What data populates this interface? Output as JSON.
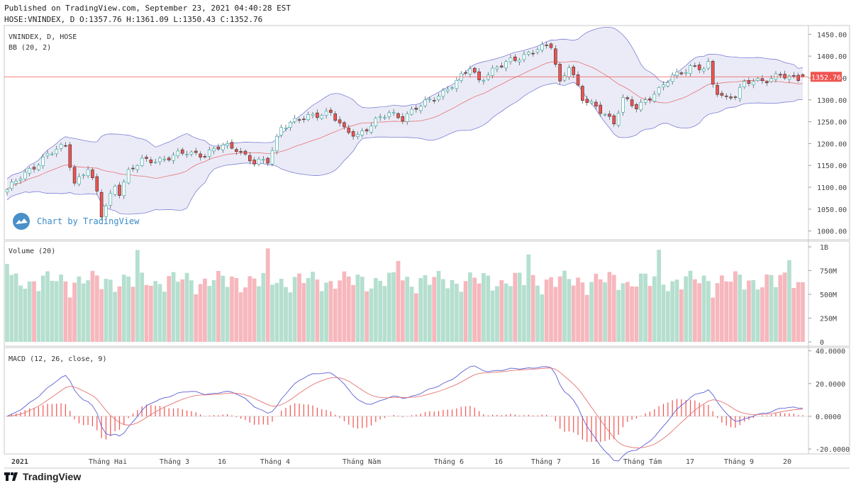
{
  "header": {
    "published": "Published on TradingView.com, September 23, 2021 04:40:28 EST",
    "ohlc": "HOSE:VNINDEX, D O:1357.76 H:1361.09 L:1350.43 C:1352.76"
  },
  "price_pane": {
    "symbol": "VNINDEX, D, HOSE",
    "indicator": "BB (20, 2)",
    "last_price": "1352.76"
  },
  "volume_pane": {
    "label": "Volume (20)"
  },
  "macd_pane": {
    "label": "MACD (12, 26, close, 9)"
  },
  "watermark": {
    "text": "Chart by TradingView"
  },
  "footer": {
    "brand": "TradingView"
  },
  "colors": {
    "up": "#26a69a",
    "down": "#ef5350",
    "band": "#7b7fd4",
    "band_fill": "#e8e8f6",
    "basis": "#e57373",
    "last": "#ef5350"
  },
  "chart_data": [
    {
      "type": "candlestick",
      "title": "VNINDEX, D, HOSE",
      "ylim": [
        980,
        1470
      ],
      "y_ticks": [
        "1450.00",
        "1400.00",
        "1350.00",
        "1300.00",
        "1250.00",
        "1200.00",
        "1150.00",
        "1100.00",
        "1050.00",
        "1000.00"
      ],
      "x_ticks": [
        "2021",
        "Tháng Hai",
        "Tháng 3",
        "16",
        "Tháng 4",
        "Tháng Năm",
        "Tháng 6",
        "16",
        "Tháng 7",
        "16",
        "Tháng Tám",
        "17",
        "Tháng 9",
        "20"
      ],
      "close_anchors": [
        [
          0,
          1095
        ],
        [
          9,
          1175
        ],
        [
          13,
          1195
        ],
        [
          15,
          1110
        ],
        [
          18,
          1145
        ],
        [
          20,
          1085
        ],
        [
          21,
          1035
        ],
        [
          24,
          1105
        ],
        [
          25,
          1090
        ],
        [
          27,
          1135
        ],
        [
          30,
          1160
        ],
        [
          35,
          1165
        ],
        [
          40,
          1180
        ],
        [
          44,
          1175
        ],
        [
          48,
          1195
        ],
        [
          51,
          1190
        ],
        [
          55,
          1155
        ],
        [
          58,
          1160
        ],
        [
          61,
          1240
        ],
        [
          64,
          1250
        ],
        [
          68,
          1265
        ],
        [
          70,
          1270
        ],
        [
          72,
          1270
        ],
        [
          75,
          1230
        ],
        [
          78,
          1220
        ],
        [
          82,
          1250
        ],
        [
          85,
          1270
        ],
        [
          88,
          1260
        ],
        [
          91,
          1280
        ],
        [
          95,
          1305
        ],
        [
          100,
          1340
        ],
        [
          103,
          1375
        ],
        [
          105,
          1345
        ],
        [
          107,
          1360
        ],
        [
          112,
          1390
        ],
        [
          118,
          1415
        ],
        [
          121,
          1425
        ],
        [
          123,
          1340
        ],
        [
          125,
          1380
        ],
        [
          128,
          1300
        ],
        [
          131,
          1285
        ],
        [
          133,
          1270
        ],
        [
          135,
          1245
        ],
        [
          137,
          1300
        ],
        [
          140,
          1285
        ],
        [
          142,
          1300
        ],
        [
          145,
          1320
        ],
        [
          148,
          1355
        ],
        [
          152,
          1375
        ],
        [
          155,
          1370
        ],
        [
          156,
          1380
        ],
        [
          157,
          1335
        ],
        [
          158,
          1320
        ],
        [
          160,
          1305
        ],
        [
          162,
          1310
        ],
        [
          164,
          1335
        ],
        [
          166,
          1345
        ],
        [
          168,
          1345
        ],
        [
          170,
          1350
        ],
        [
          172,
          1355
        ],
        [
          174,
          1350
        ],
        [
          176,
          1350
        ],
        [
          177,
          1352.76
        ]
      ]
    },
    {
      "type": "bar",
      "title": "Volume (20)",
      "ylim": [
        0,
        1000000000
      ],
      "y_ticks": [
        "1B",
        "750M",
        "500M",
        "250M",
        "0"
      ]
    },
    {
      "type": "line",
      "title": "MACD (12, 26, close, 9)",
      "ylim": [
        -23,
        42
      ],
      "y_ticks": [
        "40.0000",
        "20.0000",
        "0.0000",
        "-20.0000"
      ]
    }
  ]
}
